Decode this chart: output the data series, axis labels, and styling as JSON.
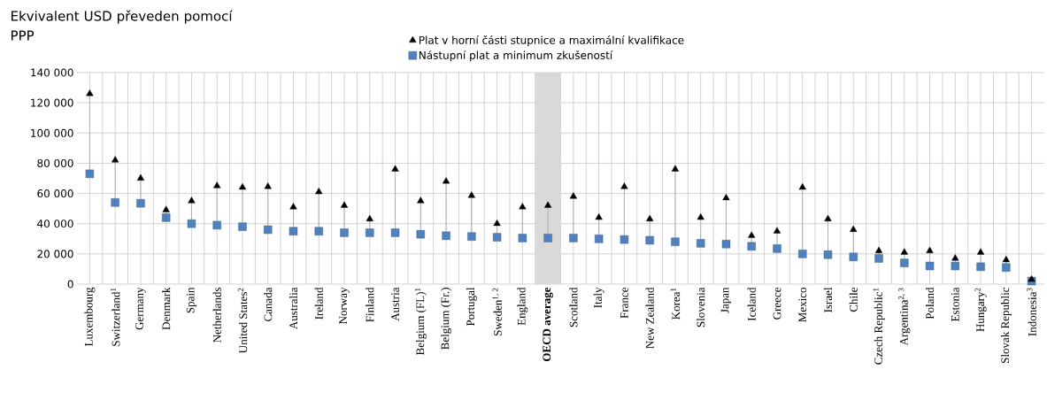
{
  "chart_data": {
    "type": "scatter",
    "ylabel": "Ekvivalent USD převeden pomocí PPP",
    "categories": [
      "Luxembourg",
      "Switzerland$^{1}$",
      "Germany",
      "Denmark",
      "Spain",
      "Netherlands",
      "United States$^{2}$",
      "Canada",
      "Australia",
      "Ireland",
      "Norway",
      "Finland",
      "Austria",
      "Belgium (FL)$^{1}$",
      "Belgium (Fr.)",
      "Portugal",
      "Sweden$^{1, 2}$",
      "England",
      "OECD average",
      "Scotland",
      "Italy",
      "France",
      "New Zealand",
      "Korea$^{1}$",
      "Slovenia",
      "Japan",
      "Iceland",
      "Greece",
      "Mexico",
      "Israel",
      "Chile",
      "Czech Republic$^{1}$",
      "Argentina$^{2, 3}$",
      "Poland",
      "Estonia",
      "Hungary$^{2}$",
      "Slovak Republic",
      "Indonesia$^{3}$"
    ],
    "series": [
      {
        "name": "Plat v horní části stupnice a maximální kvalifikace",
        "color": "#000000",
        "marker": "triangle",
        "values": [
          126000,
          82000,
          70000,
          49000,
          55000,
          65000,
          64000,
          64500,
          51000,
          61000,
          52000,
          43000,
          76000,
          55000,
          68000,
          58500,
          40000,
          51000,
          52000,
          58000,
          44000,
          64500,
          43000,
          76000,
          44000,
          57000,
          32000,
          35000,
          64000,
          43000,
          36000,
          22000,
          21000,
          22000,
          17000,
          21000,
          16000,
          3000
        ]
      },
      {
        "name": "Nástupní plat a minimum zkušeností",
        "color": "#4f81bd",
        "marker": "square",
        "values": [
          73000,
          54000,
          53500,
          44000,
          40000,
          39000,
          38000,
          36000,
          35000,
          35000,
          34000,
          34000,
          34000,
          33000,
          32000,
          31500,
          31000,
          30500,
          30500,
          30500,
          30000,
          29500,
          29000,
          28000,
          27000,
          26500,
          25000,
          23500,
          20000,
          19500,
          18000,
          17000,
          14000,
          12000,
          12000,
          11500,
          11000,
          2000
        ]
      }
    ],
    "bands": [
      {
        "axis": "x",
        "from": "OECD average",
        "to": "OECD average",
        "color": "#d9d9d9"
      }
    ],
    "ylim": [
      0,
      140000
    ],
    "yticks": [
      {
        "value": 0,
        "label": "0"
      },
      {
        "value": 20000,
        "label": "20 000"
      },
      {
        "value": 40000,
        "label": "40 000"
      },
      {
        "value": 60000,
        "label": "60 000"
      },
      {
        "value": 80000,
        "label": "80 000"
      },
      {
        "value": 100000,
        "label": "100 000"
      },
      {
        "value": 120000,
        "label": "120 000"
      },
      {
        "value": 140000,
        "label": "140 000"
      }
    ],
    "grid": true,
    "legend": "top"
  }
}
